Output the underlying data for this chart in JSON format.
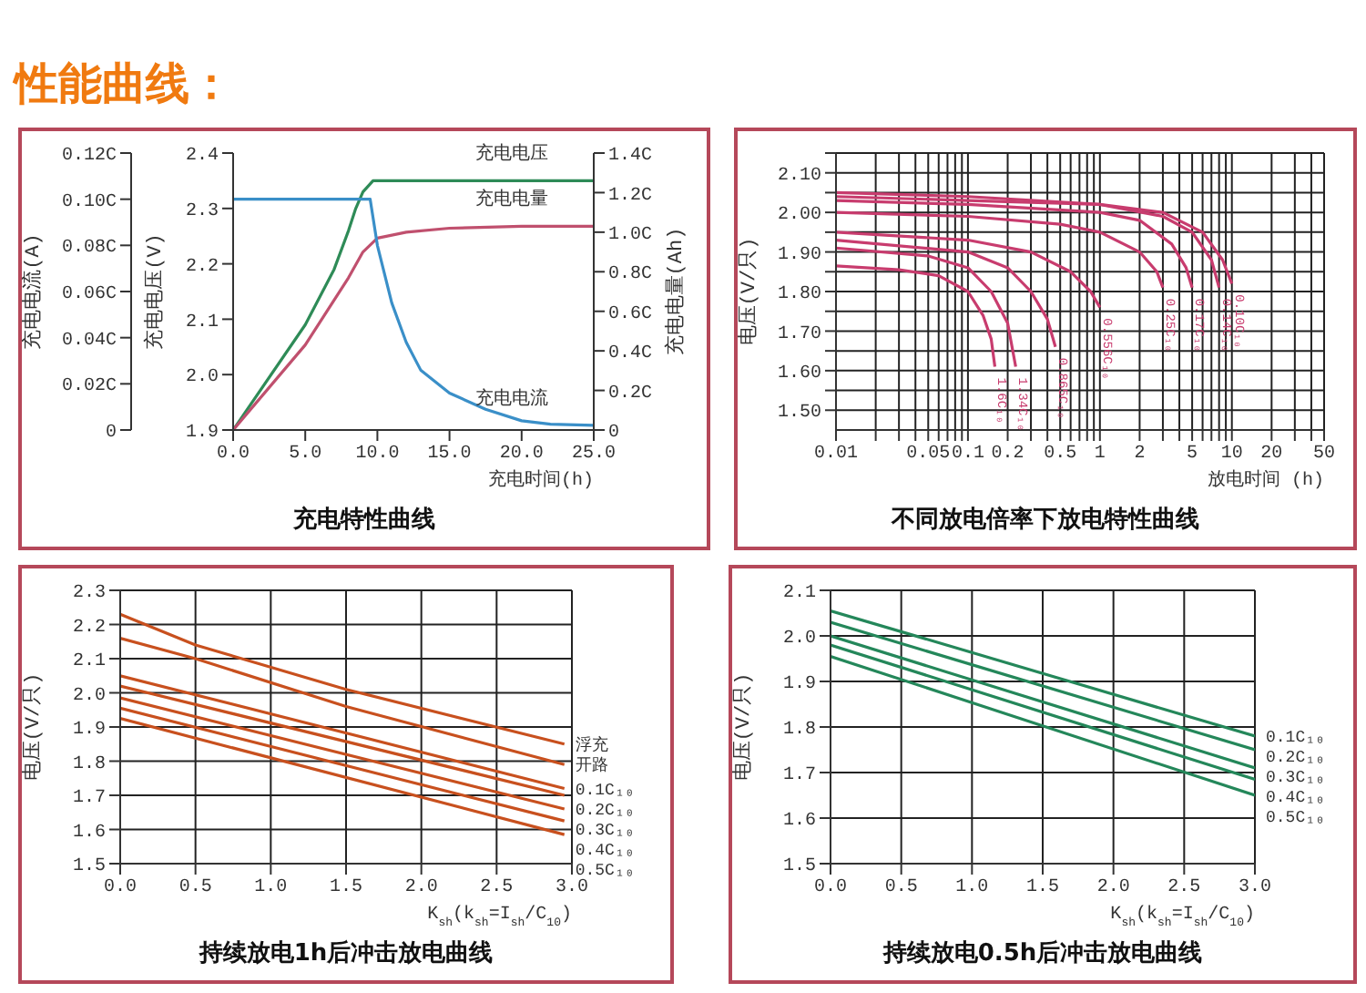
{
  "chart_data": [
    {
      "type": "line",
      "title": "充电特性曲线",
      "annotations": [
        "性能曲线："
      ],
      "xlabel": "充电时间(h)",
      "ylabel": "充电电压(V)",
      "y2label": "充电电量(Ah)",
      "y3label": "充电电流(A)",
      "xlim": [
        0,
        25
      ],
      "xticks": [
        {
          "value": 0,
          "label": "0.0"
        },
        {
          "value": 5,
          "label": "5.0"
        },
        {
          "value": 10,
          "label": "10.0"
        },
        {
          "value": 15,
          "label": "15.0"
        },
        {
          "value": 20,
          "label": "20.0"
        },
        {
          "value": 25,
          "label": "25.0"
        }
      ],
      "ylim": [
        1.9,
        2.4
      ],
      "yticks": [
        1.9,
        {
          "value": 2,
          "label": "2.0"
        },
        2.1,
        2.2,
        2.3,
        2.4
      ],
      "y2lim": [
        0,
        1.4
      ],
      "y2ticks": [
        0,
        {
          "value": 0.2,
          "label": "0.2C"
        },
        {
          "value": 0.4,
          "label": "0.4C"
        },
        {
          "value": 0.6,
          "label": "0.6C"
        },
        {
          "value": 0.8,
          "label": "0.8C"
        },
        {
          "value": 1,
          "label": "1.0C"
        },
        {
          "value": 1.2,
          "label": "1.2C"
        },
        {
          "value": 1.4,
          "label": "1.4C"
        }
      ],
      "y3lim": [
        0,
        0.12
      ],
      "y3ticks": [
        0,
        {
          "value": 0.02,
          "label": "0.02C"
        },
        {
          "value": 0.04,
          "label": "0.04C"
        },
        {
          "value": 0.06,
          "label": "0.06C"
        },
        {
          "value": 0.08,
          "label": "0.08C"
        },
        {
          "value": 0.1,
          "label": "0.10C"
        },
        {
          "value": 0.12,
          "label": "0.12C"
        }
      ],
      "grid": false,
      "series": [
        {
          "name": "充电电压",
          "color": "#2e8b57",
          "x": [
            0,
            5,
            7,
            8,
            8.5,
            9,
            9.7,
            25
          ],
          "values": [
            1.9,
            2.09,
            2.19,
            2.26,
            2.3,
            2.33,
            2.35,
            2.35
          ]
        },
        {
          "name": "充电电量",
          "color": "#c0506e",
          "axis": "y2",
          "x": [
            0,
            5,
            8,
            9,
            10,
            12,
            15,
            20,
            25
          ],
          "values": [
            0,
            0.43,
            0.77,
            0.9,
            0.97,
            1.0,
            1.02,
            1.03,
            1.03
          ]
        },
        {
          "name": "充电电流",
          "color": "#3a8fc8",
          "axis": "y3",
          "x": [
            0,
            9.5,
            10,
            11,
            12,
            13,
            15,
            17.5,
            20,
            22,
            25
          ],
          "values": [
            0.1,
            0.1,
            0.08,
            0.055,
            0.038,
            0.026,
            0.016,
            0.009,
            0.004,
            0.0025,
            0.002
          ]
        }
      ]
    },
    {
      "type": "line",
      "title": "不同放电倍率下放电特性曲线",
      "xlabel": "放电时间 (h)",
      "ylabel": "电压(V/只)",
      "log": "x",
      "grid": true,
      "xlim": [
        0.01,
        50
      ],
      "xticks": [
        0.01,
        {
          "value": 0.02,
          "label": null
        },
        {
          "value": 0.03,
          "label": null
        },
        {
          "value": 0.04,
          "label": null
        },
        0.05,
        {
          "value": 0.06,
          "label": null
        },
        {
          "value": 0.07,
          "label": null
        },
        {
          "value": 0.08,
          "label": null
        },
        {
          "value": 0.09,
          "label": null
        },
        0.1,
        0.2,
        {
          "value": 0.3,
          "label": null
        },
        {
          "value": 0.4,
          "label": null
        },
        0.5,
        {
          "value": 0.6,
          "label": null
        },
        {
          "value": 0.7,
          "label": null
        },
        {
          "value": 0.8,
          "label": null
        },
        {
          "value": 0.9,
          "label": null
        },
        1,
        2,
        {
          "value": 3,
          "label": null
        },
        {
          "value": 4,
          "label": null
        },
        5,
        {
          "value": 6,
          "label": null
        },
        {
          "value": 7,
          "label": null
        },
        {
          "value": 8,
          "label": null
        },
        {
          "value": 9,
          "label": null
        },
        10,
        20,
        {
          "value": 30,
          "label": null
        },
        {
          "value": 40,
          "label": null
        },
        50
      ],
      "ylim": [
        1.45,
        2.15
      ],
      "yticks": [
        {
          "value": 1.5,
          "label": "1.50"
        },
        {
          "value": 1.55,
          "label": null
        },
        {
          "value": 1.6,
          "label": "1.60"
        },
        {
          "value": 1.65,
          "label": null
        },
        {
          "value": 1.7,
          "label": "1.70"
        },
        {
          "value": 1.75,
          "label": null
        },
        {
          "value": 1.8,
          "label": "1.80"
        },
        {
          "value": 1.85,
          "label": null
        },
        {
          "value": 1.9,
          "label": "1.90"
        },
        {
          "value": 1.95,
          "label": null
        },
        {
          "value": 2,
          "label": "2.00"
        },
        {
          "value": 2.05,
          "label": null
        },
        {
          "value": 2.1,
          "label": "2.10"
        },
        {
          "value": 2.15,
          "label": null
        }
      ],
      "series": [
        {
          "name": "1.6C₁₀",
          "color": "#c83c6e",
          "x": [
            0.01,
            0.03,
            0.06,
            0.1,
            0.13,
            0.15,
            0.16
          ],
          "values": [
            1.865,
            1.855,
            1.84,
            1.8,
            1.74,
            1.68,
            1.61
          ]
        },
        {
          "name": "1.34C₁₀",
          "color": "#c83c6e",
          "x": [
            0.01,
            0.05,
            0.1,
            0.15,
            0.2,
            0.23
          ],
          "values": [
            1.91,
            1.89,
            1.86,
            1.8,
            1.72,
            1.61
          ]
        },
        {
          "name": "0.865C₁₀",
          "color": "#c83c6e",
          "x": [
            0.01,
            0.1,
            0.2,
            0.3,
            0.4,
            0.46
          ],
          "values": [
            1.93,
            1.9,
            1.86,
            1.8,
            1.73,
            1.66
          ]
        },
        {
          "name": "0.556C₁₀",
          "color": "#c83c6e",
          "x": [
            0.01,
            0.1,
            0.3,
            0.6,
            0.85,
            1
          ],
          "values": [
            1.95,
            1.93,
            1.9,
            1.85,
            1.8,
            1.76
          ]
        },
        {
          "name": "0.25C₁₀",
          "color": "#c83c6e",
          "x": [
            0.01,
            0.1,
            0.5,
            1,
            2,
            2.7,
            3
          ],
          "values": [
            2.0,
            1.99,
            1.97,
            1.95,
            1.9,
            1.85,
            1.81
          ]
        },
        {
          "name": "0.17C₁₀",
          "color": "#c83c6e",
          "x": [
            0.01,
            0.1,
            1,
            2,
            3.5,
            4.5,
            5
          ],
          "values": [
            2.03,
            2.02,
            2.0,
            1.98,
            1.92,
            1.86,
            1.81
          ]
        },
        {
          "name": "0.14C₁₀",
          "color": "#c83c6e",
          "x": [
            0.01,
            0.1,
            1,
            3,
            5,
            7,
            8
          ],
          "values": [
            2.04,
            2.03,
            2.02,
            1.99,
            1.95,
            1.88,
            1.81
          ]
        },
        {
          "name": "0.10C₁₀",
          "color": "#c83c6e",
          "x": [
            0.01,
            0.1,
            1,
            3,
            6,
            8.5,
            10
          ],
          "values": [
            2.05,
            2.04,
            2.02,
            2.0,
            1.95,
            1.88,
            1.82
          ]
        }
      ]
    },
    {
      "type": "line",
      "title": "持续放电1h后冲击放电曲线",
      "xlabel": "K$_{sh}$(k$_{sh}$=I$_{sh}$/C$_{10}$)",
      "ylabel": "电压(V/只)",
      "grid": true,
      "xlim": [
        0,
        3
      ],
      "xticks": [
        {
          "value": 0,
          "label": "0.0"
        },
        0.5,
        {
          "value": 1,
          "label": "1.0"
        },
        1.5,
        {
          "value": 2,
          "label": "2.0"
        },
        2.5,
        {
          "value": 3,
          "label": "3.0"
        }
      ],
      "ylim": [
        1.5,
        2.3
      ],
      "yticks": [
        1.5,
        1.6,
        1.7,
        1.8,
        1.9,
        {
          "value": 2,
          "label": "2.0"
        },
        2.1,
        2.2,
        2.3
      ],
      "series": [
        {
          "name": "浮充",
          "color": "#c8501e",
          "x": [
            0,
            0.5,
            1.5,
            2.95
          ],
          "values": [
            2.23,
            2.14,
            2.01,
            1.85
          ]
        },
        {
          "name": "开路",
          "color": "#c8501e",
          "x": [
            0,
            0.5,
            1.5,
            2.95
          ],
          "values": [
            2.16,
            2.1,
            1.96,
            1.79
          ]
        },
        {
          "name": "0.1C₁₀",
          "color": "#c8501e",
          "x": [
            0,
            2.95
          ],
          "values": [
            2.05,
            1.72
          ]
        },
        {
          "name": "0.2C₁₀",
          "color": "#c8501e",
          "x": [
            0,
            2.95
          ],
          "values": [
            2.02,
            1.7
          ]
        },
        {
          "name": "0.3C₁₀",
          "color": "#c8501e",
          "x": [
            0,
            2.95
          ],
          "values": [
            1.985,
            1.66
          ]
        },
        {
          "name": "0.4C₁₀",
          "color": "#c8501e",
          "x": [
            0,
            2.95
          ],
          "values": [
            1.955,
            1.625
          ]
        },
        {
          "name": "0.5C₁₀",
          "color": "#c8501e",
          "x": [
            0,
            2.95
          ],
          "values": [
            1.925,
            1.585
          ]
        }
      ]
    },
    {
      "type": "line",
      "title": "持续放电0.5h后冲击放电曲线",
      "xlabel": "K$_{sh}$(k$_{sh}$=I$_{sh}$/C$_{10}$)",
      "ylabel": "电压(V/只)",
      "grid": true,
      "xlim": [
        0,
        3
      ],
      "xticks": [
        {
          "value": 0,
          "label": "0.0"
        },
        0.5,
        {
          "value": 1,
          "label": "1.0"
        },
        1.5,
        {
          "value": 2,
          "label": "2.0"
        },
        2.5,
        {
          "value": 3,
          "label": "3.0"
        }
      ],
      "ylim": [
        1.5,
        2.1
      ],
      "yticks": [
        1.5,
        1.6,
        1.7,
        1.8,
        1.9,
        {
          "value": 2,
          "label": "2.0"
        },
        2.1
      ],
      "series": [
        {
          "name": "0.1C₁₀",
          "color": "#24875a",
          "x": [
            0,
            3
          ],
          "values": [
            2.055,
            1.78
          ]
        },
        {
          "name": "0.2C₁₀",
          "color": "#24875a",
          "x": [
            0,
            3
          ],
          "values": [
            2.03,
            1.75
          ]
        },
        {
          "name": "0.3C₁₀",
          "color": "#24875a",
          "x": [
            0,
            3
          ],
          "values": [
            2.0,
            1.71
          ]
        },
        {
          "name": "0.4C₁₀",
          "color": "#24875a",
          "x": [
            0,
            3
          ],
          "values": [
            1.98,
            1.685
          ]
        },
        {
          "name": "0.5C₁₀",
          "color": "#24875a",
          "x": [
            0,
            3
          ],
          "values": [
            1.955,
            1.65
          ]
        }
      ]
    }
  ]
}
